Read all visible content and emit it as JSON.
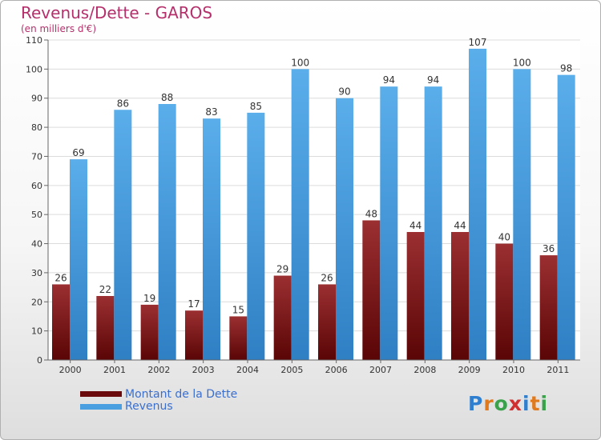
{
  "chart_data": {
    "type": "bar",
    "title": "Revenus/Dette - GAROS",
    "subtitle": "(en milliers d'€)",
    "categories": [
      "2000",
      "2001",
      "2002",
      "2003",
      "2004",
      "2005",
      "2006",
      "2007",
      "2008",
      "2009",
      "2010",
      "2011"
    ],
    "series": [
      {
        "name": "Montant de la Dette",
        "color": "#7a1416",
        "values": [
          26,
          22,
          19,
          17,
          15,
          29,
          26,
          48,
          44,
          44,
          40,
          36
        ]
      },
      {
        "name": "Revenus",
        "color": "#4a9fe0",
        "values": [
          69,
          86,
          88,
          83,
          85,
          100,
          90,
          94,
          94,
          107,
          100,
          98
        ]
      }
    ],
    "ylim": [
      0,
      110
    ],
    "yticks": [
      0,
      10,
      20,
      30,
      40,
      50,
      60,
      70,
      80,
      90,
      100,
      110
    ],
    "grid": true,
    "legend": "bottom-left"
  },
  "logo": {
    "text": "Proxiti",
    "icon": "proxiti-logo"
  }
}
